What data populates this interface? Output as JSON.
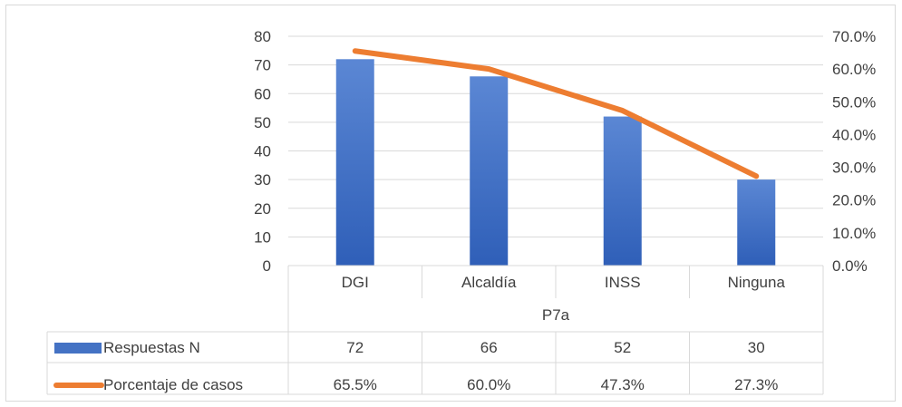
{
  "chart_data": {
    "type": "bar",
    "categories": [
      "DGI",
      "Alcaldía",
      "INSS",
      "Ninguna"
    ],
    "xlabel": "P7a",
    "y_left": {
      "ticks": [
        0,
        10,
        20,
        30,
        40,
        50,
        60,
        70,
        80
      ],
      "ylim": [
        0,
        80
      ]
    },
    "y_right": {
      "ticks": [
        "0.0%",
        "10.0%",
        "20.0%",
        "30.0%",
        "40.0%",
        "50.0%",
        "60.0%",
        "70.0%"
      ],
      "ylim": [
        0,
        70
      ]
    },
    "series": [
      {
        "name": "Respuestas N",
        "type": "bar",
        "axis": "left",
        "color": "#4472c4",
        "values": [
          72,
          66,
          52,
          30
        ],
        "labels": [
          "72",
          "66",
          "52",
          "30"
        ]
      },
      {
        "name": "Porcentaje de casos",
        "type": "line",
        "axis": "right",
        "color": "#ed7d31",
        "values": [
          65.5,
          60.0,
          47.3,
          27.3
        ],
        "labels": [
          "65.5%",
          "60.0%",
          "47.3%",
          "27.3%"
        ]
      }
    ],
    "grid": true,
    "legend": "data-table"
  }
}
